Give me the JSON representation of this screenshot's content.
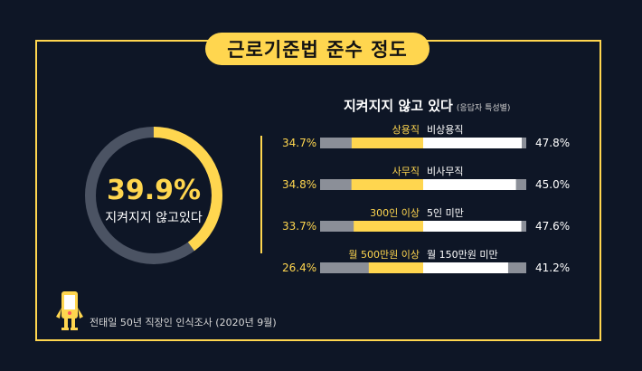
{
  "title": "근로기준법 준수 정도",
  "donut": {
    "percent_label": "39.9%",
    "label": "지켜지지 않고있다",
    "value": 39.9,
    "accent": "#ffd64f",
    "track": "#4b5363"
  },
  "subtitle": "지켜지지 않고 있다",
  "subtitle_note": "(응답자 특성별)",
  "source": "전태일 50년 직장인 인식조사 (2020년 9월)",
  "colors": {
    "background": "#0e1626",
    "yellow": "#ffd64f",
    "white": "#ffffff",
    "gray": "#8b8f98"
  },
  "chart_data": {
    "type": "bar",
    "xlim": [
      0,
      100
    ],
    "rows": [
      {
        "left_label": "상용직",
        "right_label": "비상용직",
        "left_value": 34.7,
        "right_value": 47.8,
        "left_text": "34.7%",
        "right_text": "47.8%"
      },
      {
        "left_label": "사무직",
        "right_label": "비사무직",
        "left_value": 34.8,
        "right_value": 45.0,
        "left_text": "34.8%",
        "right_text": "45.0%"
      },
      {
        "left_label": "300인 이상",
        "right_label": "5인 미만",
        "left_value": 33.7,
        "right_value": 47.6,
        "left_text": "33.7%",
        "right_text": "47.6%"
      },
      {
        "left_label": "월 500만원 이상",
        "right_label": "월 150만원 미만",
        "left_value": 26.4,
        "right_value": 41.2,
        "left_text": "26.4%",
        "right_text": "41.2%"
      }
    ]
  }
}
